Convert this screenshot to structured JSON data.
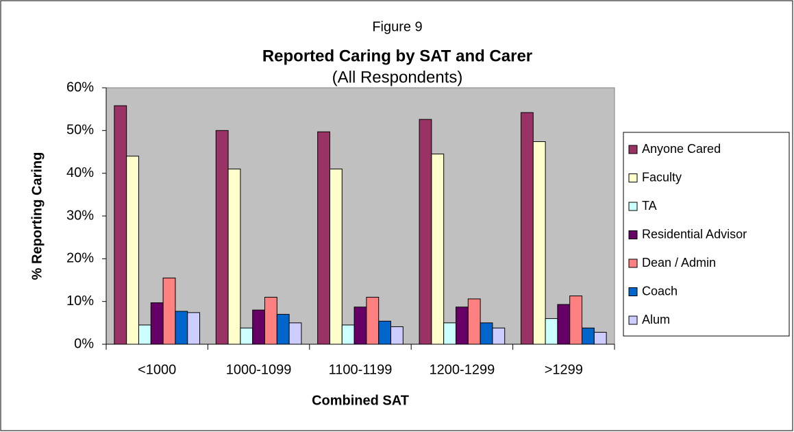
{
  "chart_data": {
    "type": "bar",
    "figure_label": "Figure 9",
    "title": "Reported Caring by SAT and Carer",
    "subtitle": "(All Respondents)",
    "x_label": "Combined SAT",
    "y_label": "% Reporting Caring",
    "categories": [
      "<1000",
      "1000-1099",
      "1100-1199",
      "1200-1299",
      ">1299"
    ],
    "series": [
      {
        "name": "Anyone Cared",
        "color": "#993366",
        "values": [
          55.8,
          50,
          49.7,
          52.6,
          54.2
        ]
      },
      {
        "name": "Faculty",
        "color": "#ffffcc",
        "values": [
          44,
          41,
          41,
          44.5,
          47.4
        ]
      },
      {
        "name": "TA",
        "color": "#ccffff",
        "values": [
          4.5,
          3.8,
          4.5,
          5,
          6
        ]
      },
      {
        "name": "Residential Advisor",
        "color": "#660066",
        "values": [
          9.7,
          8,
          8.7,
          8.7,
          9.3
        ]
      },
      {
        "name": "Dean / Admin",
        "color": "#ff8080",
        "values": [
          15.5,
          11,
          11,
          10.6,
          11.3
        ]
      },
      {
        "name": "Coach",
        "color": "#0066cc",
        "values": [
          7.7,
          7,
          5.4,
          5,
          3.8
        ]
      },
      {
        "name": "Alum",
        "color": "#ccccff",
        "values": [
          7.4,
          5,
          4.1,
          3.8,
          2.8
        ]
      }
    ],
    "ylim": [
      0,
      60
    ],
    "yticks": [
      {
        "value": 0,
        "label": "0%"
      },
      {
        "value": 10,
        "label": "10%"
      },
      {
        "value": 20,
        "label": "20%"
      },
      {
        "value": 30,
        "label": "30%"
      },
      {
        "value": 40,
        "label": "40%"
      },
      {
        "value": 50,
        "label": "50%"
      },
      {
        "value": 60,
        "label": "60%"
      }
    ],
    "grid": false,
    "plot_background": "#c0c0c0",
    "legend": "right"
  }
}
